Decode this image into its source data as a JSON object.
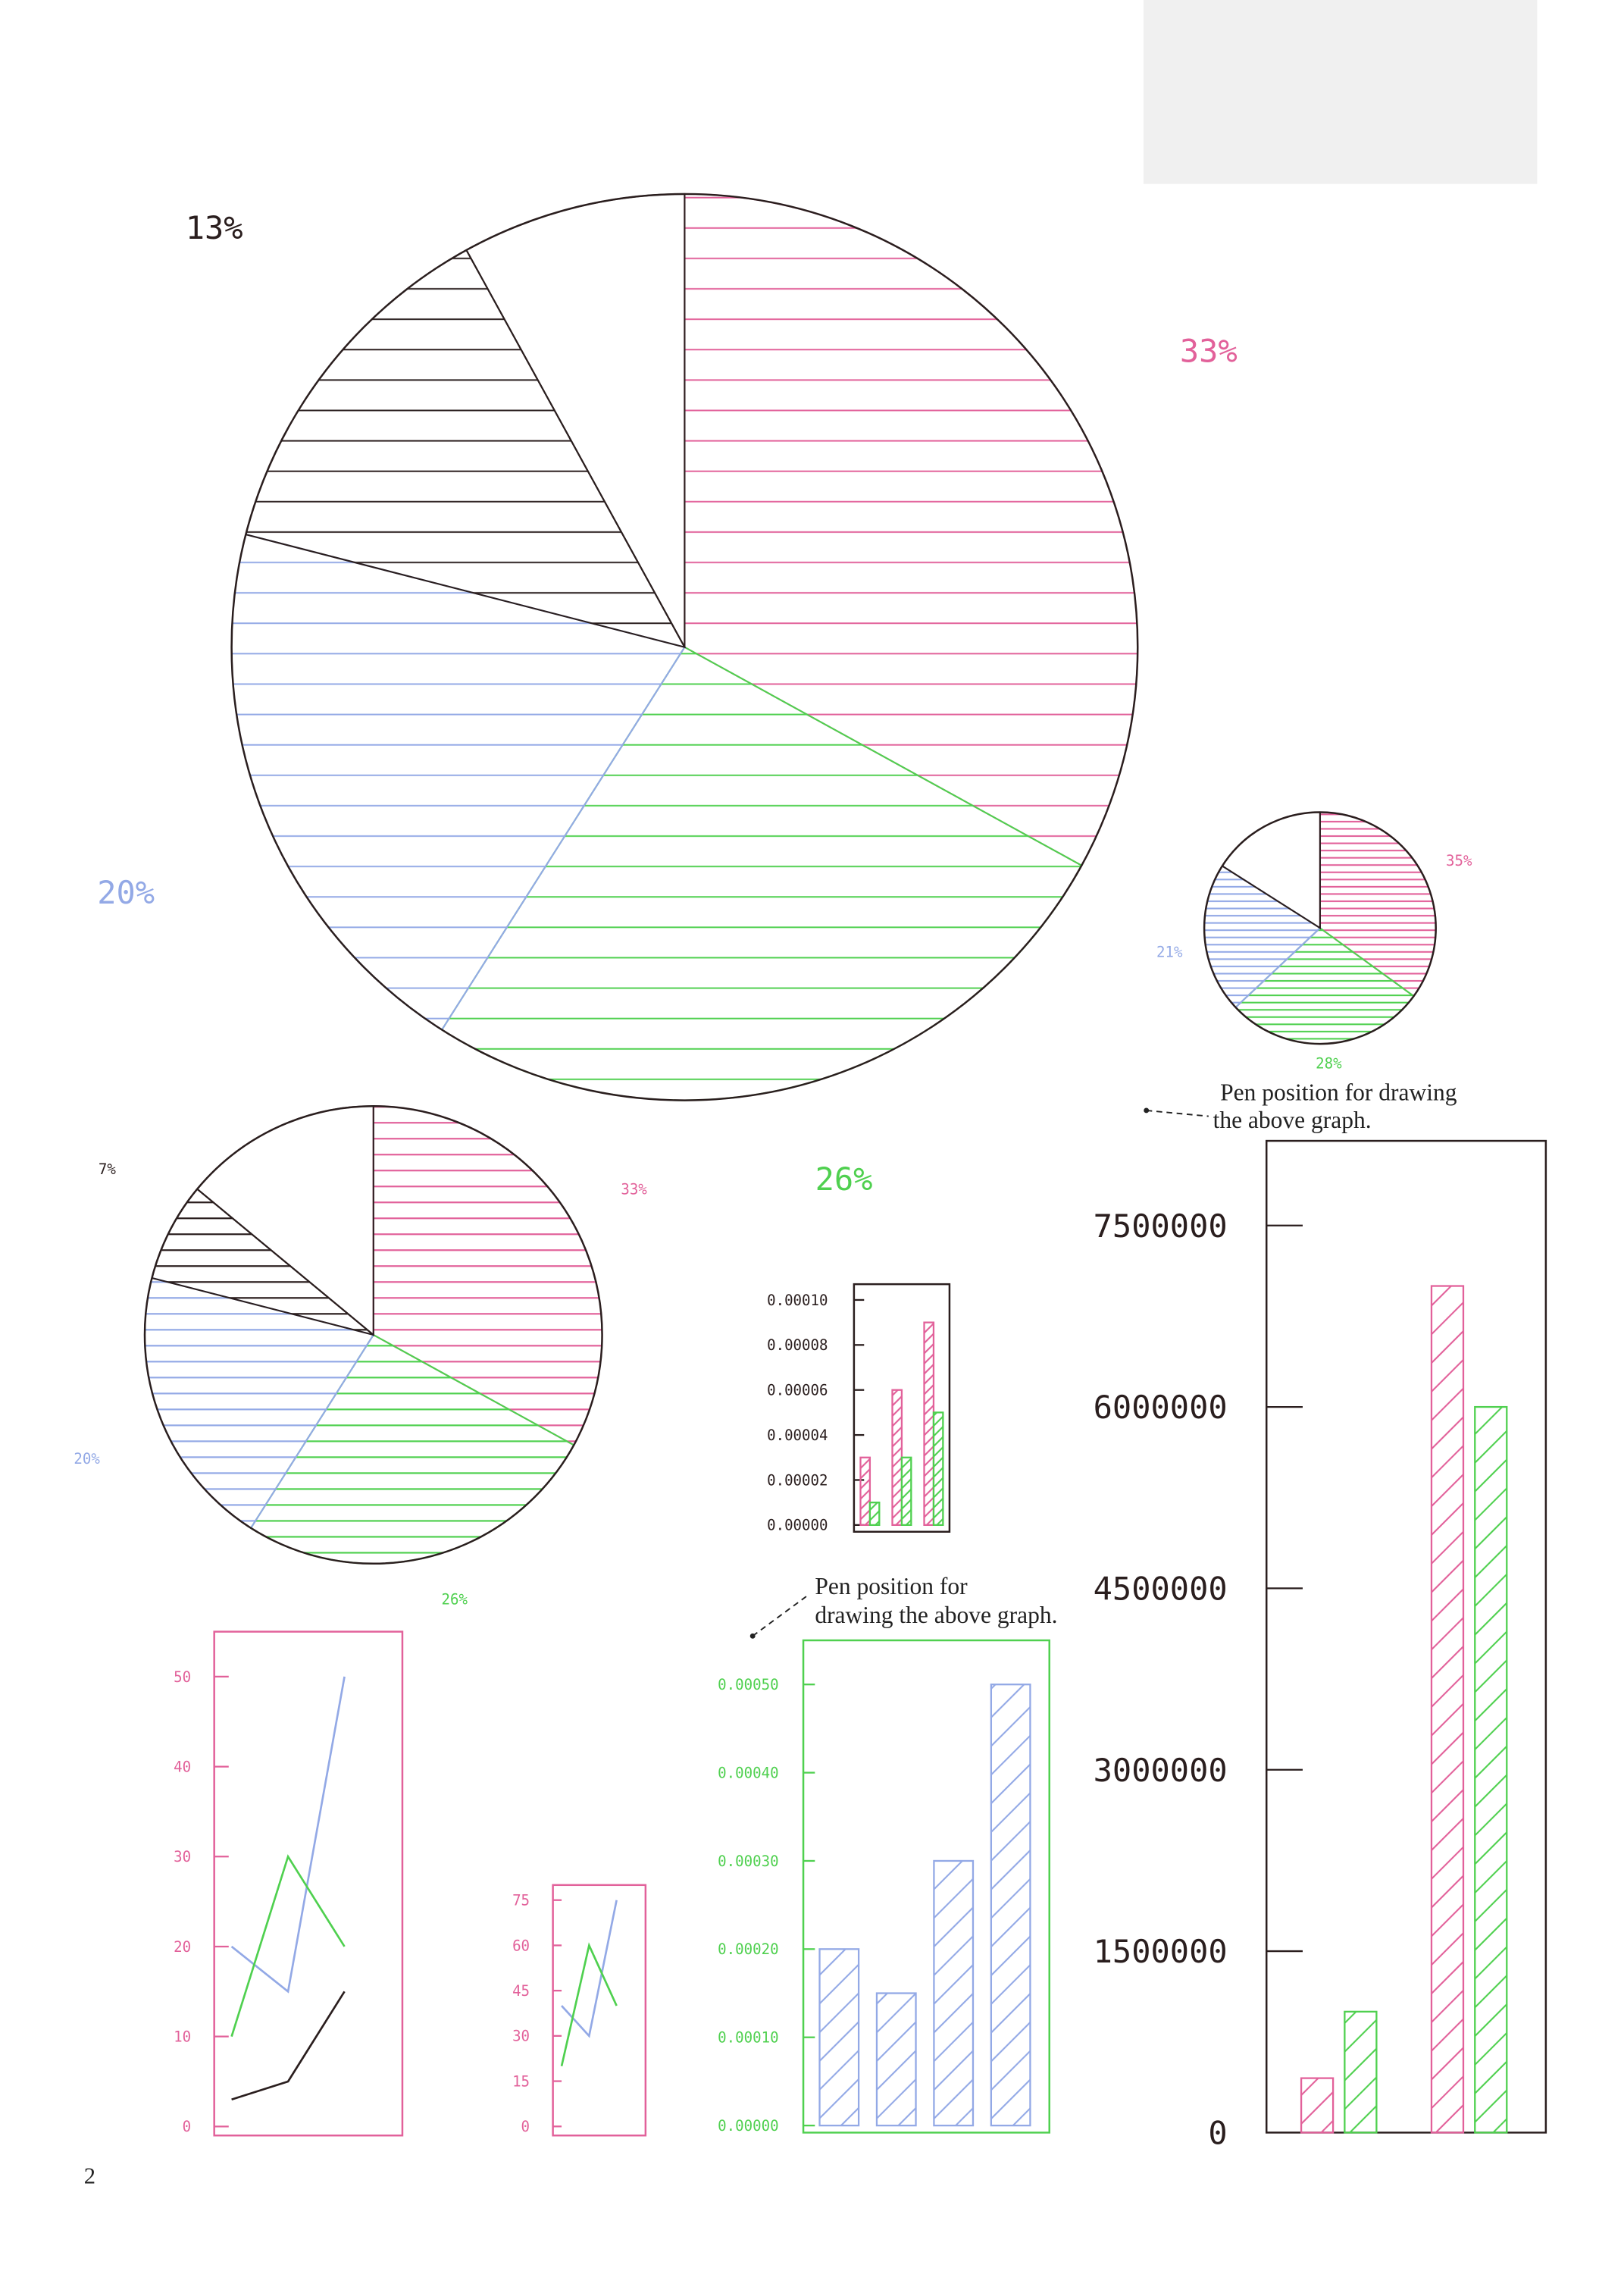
{
  "page_number": "2",
  "annotations": [
    {
      "lines": [
        "Pen position for drawing",
        "the above graph."
      ]
    },
    {
      "lines": [
        "Pen position for",
        "drawing the above graph."
      ]
    }
  ],
  "chart_data": [
    {
      "type": "pie",
      "values": [
        33,
        26,
        20,
        13,
        8
      ],
      "value_labels": [
        "33%",
        "26%",
        "20%",
        "13%",
        null
      ],
      "colors": [
        "#e2619a",
        "#4fd04f",
        "#93a9e6",
        "#2a1e1e",
        "none"
      ]
    },
    {
      "type": "pie",
      "values": [
        35,
        28,
        21,
        16
      ],
      "value_labels": [
        "35%",
        "28%",
        "21%",
        null
      ],
      "colors": [
        "#e2619a",
        "#4fd04f",
        "#93a9e6",
        "none"
      ]
    },
    {
      "type": "pie",
      "values": [
        33,
        26,
        20,
        7,
        14
      ],
      "value_labels": [
        "33%",
        "26%",
        "20%",
        "7%",
        null
      ],
      "colors": [
        "#e2619a",
        "#4fd04f",
        "#93a9e6",
        "#2a1e1e",
        "none"
      ]
    },
    {
      "type": "bar",
      "axis_color": "#2a1e1e",
      "ylim": [
        -3e-06,
        0.000107
      ],
      "yticks": [
        {
          "value": 0,
          "label": "0.00000"
        },
        {
          "value": 2e-05,
          "label": "0.00002"
        },
        {
          "value": 4e-05,
          "label": "0.00004"
        },
        {
          "value": 6e-05,
          "label": "0.00006"
        },
        {
          "value": 8e-05,
          "label": "0.00008"
        },
        {
          "value": 0.0001,
          "label": "0.00010"
        }
      ],
      "series": [
        {
          "color": "#e2619a",
          "values": [
            3e-05,
            6e-05,
            9e-05
          ]
        },
        {
          "color": "#4fd04f",
          "values": [
            1e-05,
            3e-05,
            5e-05
          ]
        }
      ]
    },
    {
      "type": "bar",
      "axis_color": "#2a1e1e",
      "ylim": [
        0,
        8200000
      ],
      "yticks": [
        0,
        1500000,
        3000000,
        4500000,
        6000000,
        7500000
      ],
      "series": [
        {
          "color": "#e2619a",
          "values": [
            450000,
            7000000
          ]
        },
        {
          "color": "#4fd04f",
          "values": [
            1000000,
            6000000
          ]
        }
      ]
    },
    {
      "type": "bar",
      "axis_color": "#4fd04f",
      "ylim": [
        -8e-06,
        0.00055
      ],
      "yticks": [
        {
          "value": 0,
          "label": "0.00000"
        },
        {
          "value": 0.0001,
          "label": "0.00010"
        },
        {
          "value": 0.0002,
          "label": "0.00020"
        },
        {
          "value": 0.0003,
          "label": "0.00030"
        },
        {
          "value": 0.0004,
          "label": "0.00040"
        },
        {
          "value": 0.0005,
          "label": "0.00050"
        }
      ],
      "series": [
        {
          "color": "#93a9e6",
          "values": [
            0.0002,
            0.00015,
            0.0003,
            0.0005
          ]
        }
      ]
    },
    {
      "type": "line",
      "axis_color": "#e2619a",
      "ylim": [
        -1,
        55
      ],
      "yticks": [
        0,
        10,
        20,
        30,
        40,
        50
      ],
      "series": [
        {
          "color": "#93a9e6",
          "values": [
            20,
            15,
            50
          ]
        },
        {
          "color": "#4fd04f",
          "values": [
            10,
            30,
            20
          ]
        },
        {
          "color": "#2a1e1e",
          "values": [
            3,
            5,
            15
          ]
        }
      ]
    },
    {
      "type": "line",
      "axis_color": "#e2619a",
      "ylim": [
        -3,
        80
      ],
      "yticks": [
        0,
        15,
        30,
        45,
        60,
        75
      ],
      "series": [
        {
          "color": "#93a9e6",
          "values": [
            40,
            30,
            75
          ]
        },
        {
          "color": "#4fd04f",
          "values": [
            20,
            60,
            40
          ]
        }
      ]
    }
  ]
}
